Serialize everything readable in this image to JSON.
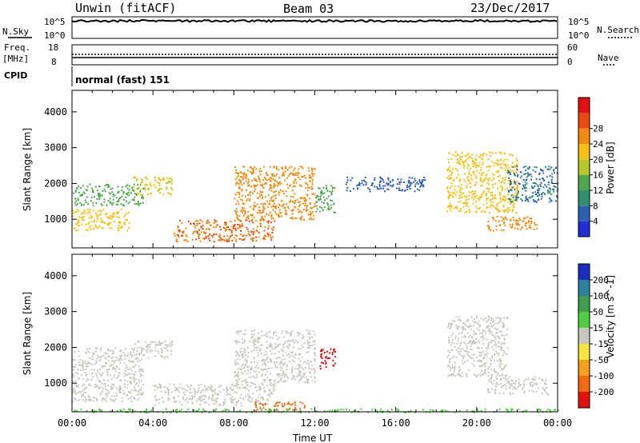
{
  "header": {
    "station": "Unwin (fitACF)",
    "beam": "Beam 03",
    "date": "23/Dec/2017"
  },
  "params": {
    "nsky_label": "N.Sky",
    "nsky_ticks": [
      "10^5",
      "10^0"
    ],
    "nsearch_label": "N.Search",
    "nsearch_ticks": [
      "10^5",
      "10^0"
    ],
    "freq_label": "Freq.",
    "freq_unit": "[MHz]",
    "freq_ticks": [
      "18",
      "8"
    ],
    "nave_label": "Nave",
    "nave_ticks": [
      "60",
      "0"
    ],
    "cpid_label": "CPID",
    "cpid_value": "normal (fast) 151"
  },
  "chart_data": [
    {
      "type": "heatmap",
      "title": "",
      "ylabel": "Slant Range [km]",
      "xlabel": "",
      "y_ticks": [
        "1000",
        "2000",
        "3000",
        "4000"
      ],
      "ylim": [
        200,
        4600
      ],
      "xlim": [
        0,
        24
      ],
      "colorbar": {
        "label": "Power [dB]",
        "ticks": [
          "4",
          "8",
          "12",
          "16",
          "20",
          "24",
          "28"
        ],
        "colors": [
          "#1f2fd4",
          "#2f5fb0",
          "#2f8f6f",
          "#4fa84f",
          "#b8c828",
          "#f5c018",
          "#f08a10",
          "#e84a10",
          "#e21010"
        ]
      },
      "echo_regions": [
        {
          "t0": 0.0,
          "t1": 2.8,
          "r0": 700,
          "r1": 1300,
          "power": 22
        },
        {
          "t0": 0.0,
          "t1": 3.5,
          "r0": 1400,
          "r1": 2000,
          "power": 14
        },
        {
          "t0": 3.0,
          "t1": 5.0,
          "r0": 1700,
          "r1": 2200,
          "power": 20
        },
        {
          "t0": 5.0,
          "t1": 10.0,
          "r0": 400,
          "r1": 1000,
          "power": 28
        },
        {
          "t0": 8.0,
          "t1": 12.0,
          "r0": 1000,
          "r1": 2500,
          "power": 26
        },
        {
          "t0": 12.0,
          "t1": 13.0,
          "r0": 1200,
          "r1": 2000,
          "power": 14
        },
        {
          "t0": 13.5,
          "t1": 17.5,
          "r0": 1800,
          "r1": 2200,
          "power": 6
        },
        {
          "t0": 18.5,
          "t1": 22.0,
          "r0": 1200,
          "r1": 2900,
          "power": 22
        },
        {
          "t0": 21.5,
          "t1": 24.0,
          "r0": 1500,
          "r1": 2500,
          "power": 8
        },
        {
          "t0": 20.5,
          "t1": 23.0,
          "r0": 700,
          "r1": 1100,
          "power": 26
        }
      ]
    },
    {
      "type": "heatmap",
      "title": "",
      "ylabel": "Slant Range [km]",
      "xlabel": "Time UT",
      "x_ticks": [
        "00:00",
        "04:00",
        "08:00",
        "12:00",
        "16:00",
        "20:00",
        "00:00"
      ],
      "y_ticks": [
        "1000",
        "2000",
        "3000",
        "4000"
      ],
      "ylim": [
        200,
        4600
      ],
      "xlim": [
        0,
        24
      ],
      "colorbar": {
        "label": "Velocity [m s^-1]",
        "ticks": [
          "200",
          "100",
          "50",
          "15",
          "-15",
          "-50",
          "-100",
          "-200"
        ],
        "colors": [
          "#1a2fc0",
          "#2f7fa0",
          "#3f9f4f",
          "#4fce3f",
          "#c8c8c0",
          "#f6e63f",
          "#f5a020",
          "#f06a10",
          "#e21010"
        ]
      },
      "echo_regions": [
        {
          "t0": 0.0,
          "t1": 3.5,
          "r0": 500,
          "r1": 2000,
          "velocity": 0
        },
        {
          "t0": 3.0,
          "t1": 5.0,
          "r0": 1700,
          "r1": 2200,
          "velocity": 0
        },
        {
          "t0": 4.0,
          "t1": 10.0,
          "r0": 400,
          "r1": 1000,
          "velocity": 0
        },
        {
          "t0": 8.0,
          "t1": 12.0,
          "r0": 1000,
          "r1": 2500,
          "velocity": 0
        },
        {
          "t0": 9.0,
          "t1": 11.5,
          "r0": 250,
          "r1": 500,
          "velocity": -100
        },
        {
          "t0": 12.2,
          "t1": 13.0,
          "r0": 1400,
          "r1": 2000,
          "velocity": -250
        },
        {
          "t0": 18.5,
          "t1": 21.5,
          "r0": 1200,
          "r1": 2900,
          "velocity": 0
        },
        {
          "t0": 20.5,
          "t1": 23.5,
          "r0": 700,
          "r1": 1200,
          "velocity": 0
        },
        {
          "t0": 0.0,
          "t1": 24.0,
          "r0": 200,
          "r1": 300,
          "velocity": 30
        }
      ]
    }
  ]
}
